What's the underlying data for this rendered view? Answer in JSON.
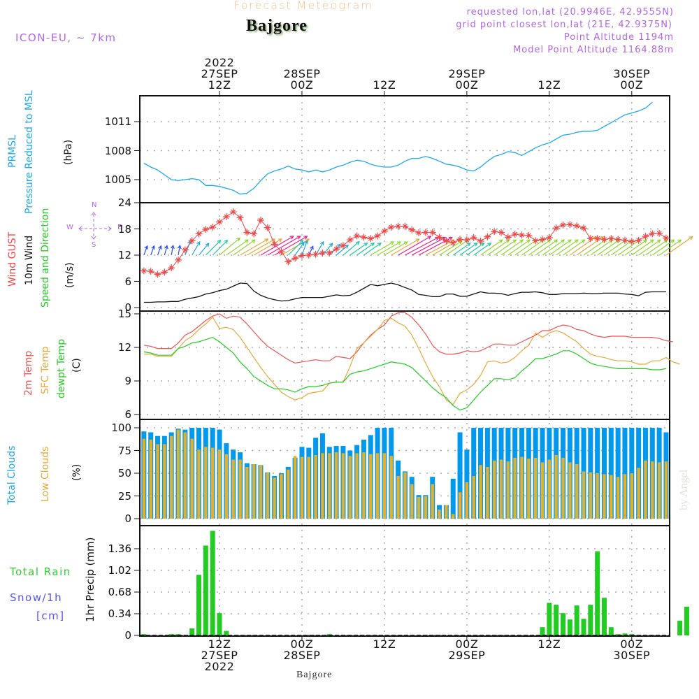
{
  "header": {
    "title": "Forecast Meteogram",
    "location": "Bajgore",
    "model": "ICON-EU, ~ 7km",
    "requested": "requested lon,lat (20.9946E, 42.9555N)",
    "gridpoint": "grid point closest lon,lat (21E, 42.9375N)",
    "point_altitude": "Point Altitude 1194m",
    "model_altitude": "Model Point Altitude 1164.88m"
  },
  "footer": {
    "location": "Bajgore",
    "credit": "by Angel"
  },
  "time_axis_top": [
    {
      "lines": [
        "2022",
        "27SEP",
        "12Z"
      ]
    },
    {
      "lines": [
        "28SEP",
        "00Z"
      ]
    },
    {
      "lines": [
        "12Z"
      ]
    },
    {
      "lines": [
        "29SEP",
        "00Z"
      ]
    },
    {
      "lines": [
        "12Z"
      ]
    },
    {
      "lines": [
        "30SEP",
        "00Z"
      ]
    }
  ],
  "time_axis_bottom": [
    {
      "lines": [
        "12Z",
        "27SEP",
        "2022"
      ]
    },
    {
      "lines": [
        "00Z",
        "28SEP"
      ]
    },
    {
      "lines": [
        "12Z"
      ]
    },
    {
      "lines": [
        "00Z",
        "29SEP"
      ]
    },
    {
      "lines": [
        "12Z"
      ]
    },
    {
      "lines": [
        "00Z",
        "30SEP"
      ]
    }
  ],
  "panel_labels": {
    "pressure": {
      "name": "PRMSL",
      "desc": "Pressure Reduced to MSL",
      "unit": "(hPa)"
    },
    "wind": {
      "gust": "Wind GUST",
      "wind10": "10m Wind",
      "speed_dir": "Speed and Direction",
      "unit": "(m/s)",
      "compass": {
        "n": "N",
        "s": "S",
        "e": "E",
        "w": "W"
      }
    },
    "temp": {
      "t2m": "2m Temp",
      "sfc": "SFC Temp",
      "dewpt": "dewpt Temp",
      "unit": "(C)"
    },
    "clouds": {
      "total": "Total Clouds",
      "low": "Low Clouds",
      "unit": "(%)"
    },
    "precip": {
      "rain": "Total   Rain",
      "snow": "Snow/1h",
      "snow_unit": "[cm]",
      "axis": "1hr Precip (mm)"
    }
  },
  "colors": {
    "pressure": "#1ea7ee",
    "gust": "#f04848",
    "wind": "#111111",
    "t2m": "#ee5555",
    "sfc": "#e8a838",
    "dewpt": "#22cc22",
    "total_clouds": "#0099ee",
    "low_clouds": "#e0b030",
    "rain": "#22cc22",
    "grid": "#aaaaaa"
  },
  "chart_data": {
    "type": "meteogram",
    "time_start": "2022-09-27T01Z",
    "time_step_hours": 1,
    "x_tick_hours": [
      11,
      23,
      35,
      47,
      59,
      71
    ],
    "panels": [
      {
        "id": "pressure",
        "type": "line",
        "ylabel": "PRMSL Pressure Reduced to MSL (hPa)",
        "yticks": [
          1005,
          1008,
          1011
        ],
        "ylim": [
          1002.6,
          1013.6
        ],
        "values": [
          1006.7,
          1006.3,
          1006.0,
          1005.5,
          1005.0,
          1004.9,
          1005.0,
          1005.1,
          1005.0,
          1004.4,
          1004.4,
          1004.3,
          1004.1,
          1003.9,
          1003.5,
          1003.6,
          1004.1,
          1004.9,
          1005.6,
          1005.9,
          1006.1,
          1006.4,
          1006.1,
          1006.0,
          1005.8,
          1006.0,
          1005.8,
          1006.0,
          1006.3,
          1006.5,
          1006.8,
          1007.0,
          1006.9,
          1006.6,
          1006.4,
          1006.3,
          1006.3,
          1006.5,
          1006.9,
          1007.2,
          1007.2,
          1007.4,
          1007.2,
          1006.9,
          1006.6,
          1006.5,
          1006.3,
          1006.0,
          1005.9,
          1006.3,
          1006.9,
          1007.4,
          1007.6,
          1007.9,
          1007.8,
          1007.5,
          1007.9,
          1008.3,
          1008.6,
          1008.8,
          1009.2,
          1009.6,
          1009.7,
          1009.9,
          1010.0,
          1010.0,
          1010.1,
          1010.5,
          1010.9,
          1011.3,
          1011.7,
          1011.9,
          1012.1,
          1012.4,
          1013.0
        ]
      },
      {
        "id": "wind",
        "type": "line+markers+arrows",
        "ylabel": "Wind GUST / 10m Wind Speed and Direction (m/s)",
        "yticks": [
          0,
          6,
          12,
          18,
          24
        ],
        "ylim": [
          -0.8,
          24
        ],
        "gust": [
          8.4,
          8.3,
          7.6,
          8.1,
          9.1,
          10.9,
          13.2,
          15.3,
          16.9,
          17.9,
          18.4,
          19.6,
          20.8,
          21.9,
          20.6,
          17.2,
          16.9,
          20.0,
          18.3,
          14.5,
          12.8,
          10.5,
          11.3,
          11.9,
          12.0,
          12.2,
          12.5,
          12.5,
          13.4,
          14.2,
          15.5,
          16.4,
          16.1,
          15.8,
          16.4,
          17.5,
          18.4,
          18.6,
          18.6,
          17.8,
          17.1,
          17.2,
          17.2,
          16.1,
          15.3,
          14.8,
          15.6,
          15.5,
          16.0,
          15.2,
          16.2,
          17.4,
          17.2,
          16.1,
          16.8,
          16.6,
          16.5,
          15.3,
          15.6,
          16.0,
          18.2,
          18.9,
          19.0,
          18.7,
          18.2,
          15.8,
          15.8,
          15.6,
          15.8,
          15.6,
          15.4,
          15.1,
          15.4,
          16.3,
          16.9,
          17.0,
          15.9
        ],
        "wind10": [
          1.2,
          1.2,
          1.3,
          1.3,
          1.4,
          1.4,
          1.9,
          2.2,
          2.5,
          3.1,
          3.4,
          3.9,
          4.2,
          4.9,
          5.6,
          5.5,
          3.8,
          2.8,
          2.2,
          1.8,
          1.5,
          1.6,
          2.0,
          2.3,
          2.3,
          2.3,
          2.3,
          2.6,
          2.9,
          2.7,
          2.8,
          3.5,
          4.4,
          5.3,
          5.0,
          5.3,
          5.6,
          5.2,
          4.6,
          4.0,
          3.0,
          2.8,
          2.5,
          2.5,
          3.1,
          3.1,
          2.6,
          2.6,
          3.1,
          3.6,
          3.3,
          3.3,
          3.2,
          2.8,
          3.2,
          3.5,
          3.5,
          3.6,
          3.4,
          3.0,
          3.0,
          3.2,
          3.2,
          3.2,
          3.3,
          3.2,
          3.2,
          3.3,
          3.3,
          3.3,
          3.1,
          3.0,
          2.7,
          3.5,
          3.6,
          3.6,
          3.6
        ],
        "arrow_dir_deg": [
          20,
          20,
          20,
          15,
          10,
          10,
          20,
          30,
          40,
          45,
          45,
          50,
          55,
          55,
          60,
          60,
          60,
          60,
          60,
          60,
          60,
          45,
          35,
          20,
          25,
          30,
          40,
          45,
          50,
          50,
          55,
          55,
          55,
          60,
          60,
          60,
          60,
          60,
          62,
          62,
          62,
          62,
          60,
          58,
          55,
          55,
          55,
          55,
          55,
          55,
          55,
          55,
          55,
          55,
          55,
          55,
          55,
          55,
          55,
          55,
          55,
          55,
          55,
          55,
          55,
          55,
          55,
          55,
          55,
          55,
          55,
          55,
          55,
          55,
          55,
          55,
          55
        ],
        "arrow_speed_class": [
          0,
          0,
          0,
          0,
          0,
          0,
          1,
          1,
          1,
          2,
          2,
          3,
          3,
          3,
          4,
          4,
          4,
          5,
          5,
          5,
          4,
          2,
          1,
          1,
          0,
          1,
          1,
          1,
          1,
          2,
          2,
          2,
          2,
          3,
          3,
          3,
          4,
          5,
          5,
          5,
          5,
          4,
          4,
          3,
          3,
          2,
          2,
          2,
          2,
          3,
          3,
          3,
          3,
          3,
          3,
          3,
          3,
          3,
          3,
          3,
          3,
          3,
          4,
          4,
          3,
          3,
          3,
          3,
          3,
          3,
          3,
          3,
          3,
          3,
          3,
          3,
          4
        ]
      },
      {
        "id": "temp",
        "type": "line",
        "ylabel": "2m Temp / SFC Temp / dewpt Temp (C)",
        "yticks": [
          6,
          9,
          12,
          15
        ],
        "ylim": [
          5.8,
          15.2
        ],
        "t2m": [
          12.2,
          12.1,
          11.9,
          11.9,
          11.9,
          12.4,
          13.1,
          13.4,
          13.9,
          14.4,
          14.8,
          15.0,
          14.6,
          14.8,
          14.7,
          14.1,
          13.4,
          12.7,
          12.1,
          11.7,
          11.3,
          10.9,
          10.6,
          10.7,
          10.8,
          10.9,
          10.8,
          10.8,
          11.2,
          11.1,
          11.0,
          11.6,
          12.4,
          13.1,
          13.6,
          14.0,
          14.8,
          15.4,
          15.2,
          14.7,
          14.0,
          13.2,
          12.2,
          11.6,
          11.4,
          11.4,
          11.5,
          11.7,
          11.6,
          11.7,
          12.0,
          12.3,
          12.3,
          12.2,
          12.2,
          12.5,
          12.8,
          13.1,
          13.5,
          13.5,
          13.8,
          14.0,
          13.9,
          13.6,
          13.5,
          13.2,
          13.0,
          12.9,
          13.0,
          13.0,
          13.0,
          12.9,
          12.9,
          12.9,
          12.9,
          12.8,
          12.6,
          12.5
        ],
        "sfc": [
          11.4,
          11.4,
          11.2,
          11.2,
          11.2,
          11.9,
          12.6,
          13.0,
          13.6,
          14.1,
          14.7,
          13.7,
          13.8,
          13.6,
          12.9,
          12.0,
          11.1,
          10.2,
          9.4,
          8.7,
          8.0,
          7.6,
          7.3,
          7.5,
          7.9,
          8.0,
          8.1,
          8.8,
          8.9,
          8.9,
          10.3,
          11.9,
          12.4,
          13.0,
          13.6,
          14.4,
          14.6,
          14.2,
          13.9,
          13.1,
          11.9,
          10.6,
          9.4,
          8.5,
          7.3,
          6.9,
          7.9,
          8.2,
          8.7,
          9.5,
          10.7,
          10.8,
          10.6,
          10.7,
          11.1,
          11.7,
          12.2,
          13.3,
          12.9,
          13.3,
          13.5,
          13.3,
          12.9,
          12.5,
          11.9,
          11.4,
          11.2,
          11.1,
          10.9,
          10.8,
          10.8,
          10.7,
          10.5,
          10.5,
          10.8,
          10.8,
          11.1,
          10.7,
          10.5
        ],
        "dewpt": [
          11.6,
          11.5,
          11.3,
          11.3,
          11.3,
          11.9,
          12.1,
          12.4,
          12.5,
          12.7,
          12.9,
          12.5,
          12.0,
          11.5,
          10.7,
          10.1,
          9.4,
          9.0,
          8.6,
          8.3,
          8.3,
          8.2,
          8.0,
          8.3,
          8.5,
          8.5,
          8.6,
          8.8,
          8.9,
          8.9,
          9.6,
          9.8,
          9.9,
          10.1,
          10.3,
          10.5,
          10.7,
          10.6,
          10.5,
          10.2,
          9.6,
          9.0,
          8.4,
          7.9,
          7.5,
          6.8,
          6.4,
          6.6,
          7.3,
          8.0,
          8.6,
          9.2,
          9.2,
          9.1,
          9.3,
          9.9,
          10.4,
          11.0,
          11.0,
          11.2,
          11.4,
          11.7,
          11.7,
          11.4,
          11.0,
          10.6,
          10.4,
          10.3,
          10.2,
          10.1,
          10.1,
          10.1,
          10.1,
          10.1,
          10.0,
          10.0,
          10.1
        ],
        "note": "pressure/wind/temp series span the full time window"
      },
      {
        "id": "clouds",
        "type": "bar",
        "ylabel": "Total Clouds / Low Clouds (%)",
        "yticks": [
          0,
          25,
          50,
          75,
          100
        ],
        "ylim": [
          0,
          100
        ],
        "total": [
          96,
          95,
          91,
          91,
          95,
          99,
          98,
          100,
          100,
          100,
          100,
          98,
          83,
          76,
          73,
          61,
          60,
          59,
          51,
          47,
          50,
          57,
          67,
          79,
          78,
          89,
          94,
          79,
          80,
          80,
          75,
          81,
          87,
          92,
          100,
          100,
          100,
          64,
          52,
          46,
          26,
          26,
          46,
          15,
          15,
          44,
          95,
          76,
          100,
          100,
          100,
          100,
          100,
          100,
          100,
          100,
          100,
          100,
          100,
          100,
          100,
          100,
          100,
          100,
          100,
          100,
          100,
          100,
          100,
          100,
          100,
          100,
          100,
          100,
          100,
          100,
          95
        ],
        "low": [
          88,
          87,
          82,
          82,
          91,
          98,
          95,
          88,
          76,
          79,
          78,
          76,
          71,
          65,
          65,
          57,
          60,
          59,
          51,
          45,
          49,
          54,
          69,
          68,
          68,
          70,
          72,
          72,
          73,
          72,
          69,
          72,
          73,
          71,
          72,
          72,
          69,
          47,
          51,
          38,
          24,
          25,
          38,
          10,
          15,
          5,
          29,
          40,
          47,
          59,
          57,
          64,
          65,
          63,
          67,
          68,
          66,
          67,
          62,
          65,
          70,
          67,
          62,
          60,
          52,
          51,
          50,
          49,
          48,
          46,
          49,
          50,
          56,
          64,
          63,
          62,
          63
        ],
        "total_series_name": "Total Clouds",
        "low_series_name": "Low Clouds"
      },
      {
        "id": "precip",
        "type": "bar",
        "ylabel": "1hr Precip (mm)",
        "yticks": [
          0,
          0.34,
          0.68,
          1.02,
          1.36
        ],
        "ylim": [
          0,
          1.74
        ],
        "rain": [
          0.02,
          0,
          0,
          0,
          0.02,
          0.02,
          0,
          0.11,
          0.95,
          1.41,
          1.64,
          0.35,
          0.07,
          0,
          0,
          0,
          0,
          0,
          0,
          0,
          0,
          0,
          0,
          0,
          0,
          0,
          0,
          0.02,
          0,
          0,
          0,
          0,
          0,
          0,
          0,
          0,
          0,
          0,
          0,
          0,
          0,
          0,
          0,
          0,
          0,
          0,
          0,
          0,
          0,
          0,
          0,
          0,
          0,
          0,
          0,
          0,
          0,
          0,
          0.13,
          0.51,
          0.48,
          0.35,
          0.25,
          0.47,
          0.26,
          0.48,
          1.32,
          0.59,
          0.13,
          0.02,
          0.03,
          0.02,
          0,
          0,
          0,
          0,
          0,
          0,
          0.23,
          0.45,
          0
        ],
        "series_name": "Total Rain"
      }
    ]
  }
}
